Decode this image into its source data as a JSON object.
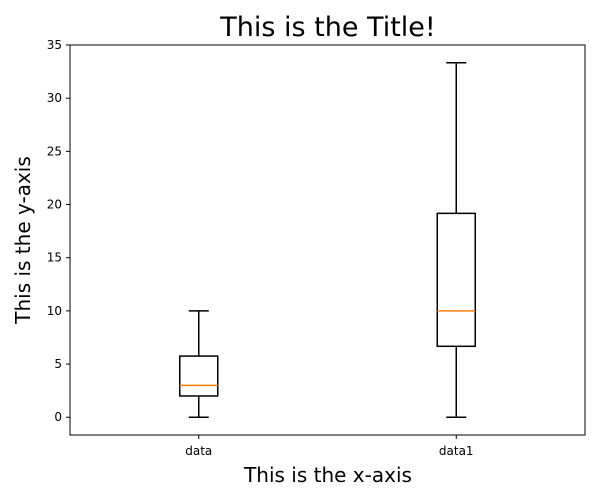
{
  "chart_data": {
    "type": "box",
    "title": "This is the Title!",
    "xlabel": "This is the x-axis",
    "ylabel": "This is the y-axis",
    "ylim": [
      -1.67,
      35
    ],
    "yticks": [
      0,
      5,
      10,
      15,
      20,
      25,
      30,
      35
    ],
    "grid": false,
    "categories": [
      "data",
      "data1"
    ],
    "boxes": [
      {
        "name": "data",
        "whisker_low": 0,
        "q1": 2,
        "median": 3,
        "q3": 5.75,
        "whisker_high": 10
      },
      {
        "name": "data1",
        "whisker_low": 0,
        "q1": 6.67,
        "median": 10,
        "q3": 19.17,
        "whisker_high": 33.33
      }
    ],
    "colors": {
      "box": "#000000",
      "median": "#ff7f0e",
      "axes": "#000000"
    }
  }
}
